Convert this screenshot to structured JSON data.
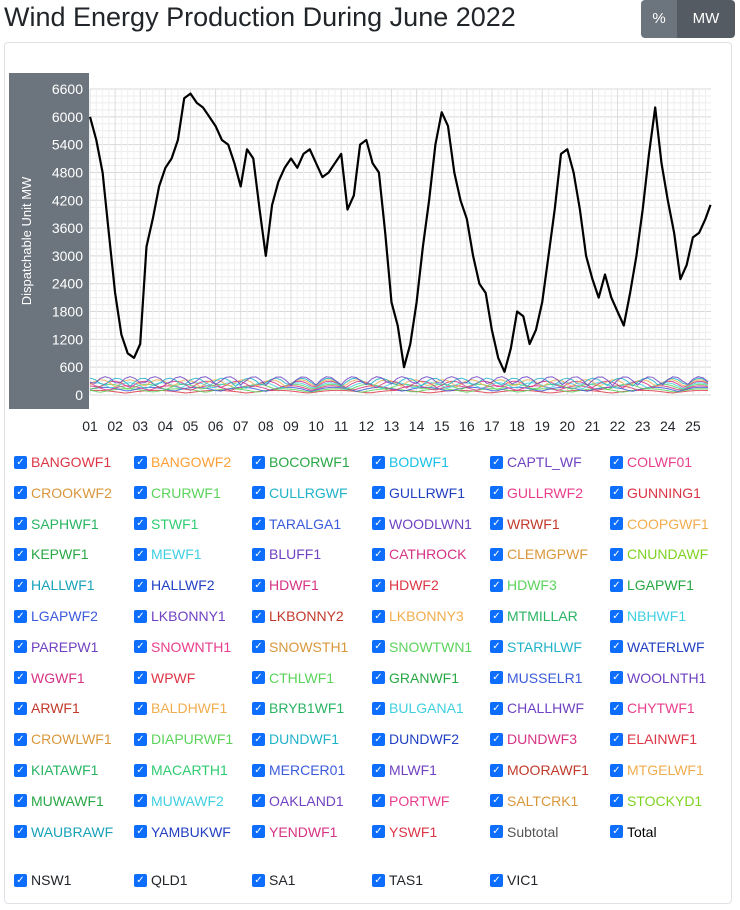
{
  "page": {
    "title": "Wind Energy Production During June 2022",
    "toggle_percent": "%",
    "toggle_mw": "MW"
  },
  "colors": {
    "axis_panel": "#6c757d",
    "total_line": "#000000",
    "checkbox": "#0d6efd"
  },
  "chart_data": {
    "type": "line",
    "title": "",
    "ylabel": "Dispatchable Unit MW",
    "ylim": [
      0,
      6600
    ],
    "yticks": [
      "6600",
      "6000",
      "5400",
      "4800",
      "4200",
      "3600",
      "3000",
      "2400",
      "1800",
      "1200",
      "600",
      "0"
    ],
    "xticks": [
      "01",
      "02",
      "03",
      "04",
      "05",
      "06",
      "07",
      "08",
      "09",
      "10",
      "11",
      "12",
      "13",
      "14",
      "15",
      "16",
      "17",
      "18",
      "19",
      "20",
      "21",
      "22",
      "23",
      "24",
      "25"
    ],
    "grid": true,
    "series": [
      {
        "name": "Total",
        "color": "#000000",
        "x": [
          1.0,
          1.25,
          1.5,
          1.75,
          2.0,
          2.25,
          2.5,
          2.75,
          3.0,
          3.25,
          3.5,
          3.75,
          4.0,
          4.25,
          4.5,
          4.75,
          5.0,
          5.25,
          5.5,
          5.75,
          6.0,
          6.25,
          6.5,
          6.75,
          7.0,
          7.25,
          7.5,
          7.75,
          8.0,
          8.25,
          8.5,
          8.75,
          9.0,
          9.25,
          9.5,
          9.75,
          10.0,
          10.25,
          10.5,
          10.75,
          11.0,
          11.25,
          11.5,
          11.75,
          12.0,
          12.25,
          12.5,
          12.75,
          13.0,
          13.25,
          13.5,
          13.75,
          14.0,
          14.25,
          14.5,
          14.75,
          15.0,
          15.25,
          15.5,
          15.75,
          16.0,
          16.25,
          16.5,
          16.75,
          17.0,
          17.25,
          17.5,
          17.75,
          18.0,
          18.25,
          18.5,
          18.75,
          19.0,
          19.25,
          19.5,
          19.75,
          20.0,
          20.25,
          20.5,
          20.75,
          21.0,
          21.25,
          21.5,
          21.75,
          22.0,
          22.25,
          22.5,
          22.75,
          23.0,
          23.25,
          23.5,
          23.75,
          24.0,
          24.25,
          24.5,
          24.75,
          25.0,
          25.25,
          25.5,
          25.7
        ],
        "values": [
          6000,
          5500,
          4800,
          3500,
          2200,
          1300,
          900,
          800,
          1100,
          3200,
          3800,
          4500,
          4900,
          5100,
          5500,
          6400,
          6500,
          6300,
          6200,
          6000,
          5800,
          5500,
          5400,
          5000,
          4500,
          5300,
          5100,
          4000,
          3000,
          4100,
          4600,
          4900,
          5100,
          4900,
          5200,
          5300,
          5000,
          4700,
          4800,
          5000,
          5200,
          4000,
          4300,
          5400,
          5500,
          5000,
          4800,
          3500,
          2000,
          1500,
          600,
          1100,
          2000,
          3200,
          4200,
          5400,
          6100,
          5800,
          4800,
          4200,
          3800,
          3000,
          2400,
          2200,
          1400,
          800,
          500,
          1000,
          1800,
          1700,
          1100,
          1400,
          2000,
          3000,
          4000,
          5200,
          5300,
          4800,
          4000,
          3000,
          2500,
          2100,
          2600,
          2100,
          1800,
          1500,
          2200,
          3000,
          4000,
          5200,
          6200,
          5000,
          4200,
          3500,
          2500,
          2800,
          3400,
          3500,
          3800,
          4100
        ]
      }
    ]
  },
  "legend": {
    "units": [
      {
        "label": "BANGOWF1",
        "color": "#dc3545"
      },
      {
        "label": "BANGOWF2",
        "color": "#fd9f35"
      },
      {
        "label": "BOCORWF1",
        "color": "#28a745"
      },
      {
        "label": "BODWF1",
        "color": "#17c1e8"
      },
      {
        "label": "CAPTL_WF",
        "color": "#6f42c1"
      },
      {
        "label": "COLWF01",
        "color": "#e83e8c"
      },
      {
        "label": "CROOKWF2",
        "color": "#d9973b"
      },
      {
        "label": "CRURWF1",
        "color": "#5bd35b"
      },
      {
        "label": "CULLRGWF",
        "color": "#20b2c9"
      },
      {
        "label": "GULLRWF1",
        "color": "#2140c2"
      },
      {
        "label": "GULLRWF2",
        "color": "#e83e8c"
      },
      {
        "label": "GUNNING1",
        "color": "#dc3545"
      },
      {
        "label": "SAPHWF1",
        "color": "#28b463"
      },
      {
        "label": "STWF1",
        "color": "#2ecc71"
      },
      {
        "label": "TARALGA1",
        "color": "#3b5bdb"
      },
      {
        "label": "WOODLWN1",
        "color": "#6f42c1"
      },
      {
        "label": "WRWF1",
        "color": "#c0392b"
      },
      {
        "label": "COOPGWF1",
        "color": "#f0ad4e"
      },
      {
        "label": "KEPWF1",
        "color": "#28a745"
      },
      {
        "label": "MEWF1",
        "color": "#3fd0e0"
      },
      {
        "label": "BLUFF1",
        "color": "#6f42c1"
      },
      {
        "label": "CATHROCK",
        "color": "#d63384"
      },
      {
        "label": "CLEMGPWF",
        "color": "#d9973b"
      },
      {
        "label": "CNUNDAWF",
        "color": "#7ed321"
      },
      {
        "label": "HALLWF1",
        "color": "#17a2b8"
      },
      {
        "label": "HALLWF2",
        "color": "#2140c2"
      },
      {
        "label": "HDWF1",
        "color": "#d63384"
      },
      {
        "label": "HDWF2",
        "color": "#dc3545"
      },
      {
        "label": "HDWF3",
        "color": "#5bd35b"
      },
      {
        "label": "LGAPWF1",
        "color": "#28a745"
      },
      {
        "label": "LGAPWF2",
        "color": "#3b5bdb"
      },
      {
        "label": "LKBONNY1",
        "color": "#6f42c1"
      },
      {
        "label": "LKBONNY2",
        "color": "#c0392b"
      },
      {
        "label": "LKBONNY3",
        "color": "#f0ad4e"
      },
      {
        "label": "MTMILLAR",
        "color": "#28b463"
      },
      {
        "label": "NBHWF1",
        "color": "#3fd0e0"
      },
      {
        "label": "PAREPW1",
        "color": "#6f42c1"
      },
      {
        "label": "SNOWNTH1",
        "color": "#e83e8c"
      },
      {
        "label": "SNOWSTH1",
        "color": "#d9973b"
      },
      {
        "label": "SNOWTWN1",
        "color": "#5bd35b"
      },
      {
        "label": "STARHLWF",
        "color": "#20b2c9"
      },
      {
        "label": "WATERLWF",
        "color": "#2140c2"
      },
      {
        "label": "WGWF1",
        "color": "#d63384"
      },
      {
        "label": "WPWF",
        "color": "#dc3545"
      },
      {
        "label": "CTHLWF1",
        "color": "#5bd35b"
      },
      {
        "label": "GRANWF1",
        "color": "#28a745"
      },
      {
        "label": "MUSSELR1",
        "color": "#3b5bdb"
      },
      {
        "label": "WOOLNTH1",
        "color": "#6f42c1"
      },
      {
        "label": "ARWF1",
        "color": "#c0392b"
      },
      {
        "label": "BALDHWF1",
        "color": "#f0ad4e"
      },
      {
        "label": "BRYB1WF1",
        "color": "#28b463"
      },
      {
        "label": "BULGANA1",
        "color": "#3fd0e0"
      },
      {
        "label": "CHALLHWF",
        "color": "#6f42c1"
      },
      {
        "label": "CHYTWF1",
        "color": "#e83e8c"
      },
      {
        "label": "CROWLWF1",
        "color": "#d9973b"
      },
      {
        "label": "DIAPURWF1",
        "color": "#5bd35b"
      },
      {
        "label": "DUNDWF1",
        "color": "#20b2c9"
      },
      {
        "label": "DUNDWF2",
        "color": "#2140c2"
      },
      {
        "label": "DUNDWF3",
        "color": "#d63384"
      },
      {
        "label": "ELAINWF1",
        "color": "#dc3545"
      },
      {
        "label": "KIATAWF1",
        "color": "#28b463"
      },
      {
        "label": "MACARTH1",
        "color": "#2ecc71"
      },
      {
        "label": "MERCER01",
        "color": "#3b5bdb"
      },
      {
        "label": "MLWF1",
        "color": "#6f42c1"
      },
      {
        "label": "MOORAWF1",
        "color": "#c0392b"
      },
      {
        "label": "MTGELWF1",
        "color": "#f0ad4e"
      },
      {
        "label": "MUWAWF1",
        "color": "#28a745"
      },
      {
        "label": "MUWAWF2",
        "color": "#3fd0e0"
      },
      {
        "label": "OAKLAND1",
        "color": "#6f42c1"
      },
      {
        "label": "PORTWF",
        "color": "#e83e8c"
      },
      {
        "label": "SALTCRK1",
        "color": "#d9973b"
      },
      {
        "label": "STOCKYD1",
        "color": "#7ed321"
      },
      {
        "label": "WAUBRAWF",
        "color": "#17a2b8"
      },
      {
        "label": "YAMBUKWF",
        "color": "#2140c2"
      },
      {
        "label": "YENDWF1",
        "color": "#d63384"
      },
      {
        "label": "YSWF1",
        "color": "#dc3545"
      },
      {
        "label": "Subtotal",
        "color": "#555555"
      },
      {
        "label": "Total",
        "color": "#000000"
      }
    ],
    "regions": [
      {
        "label": "NSW1",
        "color": "#212529"
      },
      {
        "label": "QLD1",
        "color": "#212529"
      },
      {
        "label": "SA1",
        "color": "#212529"
      },
      {
        "label": "TAS1",
        "color": "#212529"
      },
      {
        "label": "VIC1",
        "color": "#212529"
      }
    ]
  }
}
